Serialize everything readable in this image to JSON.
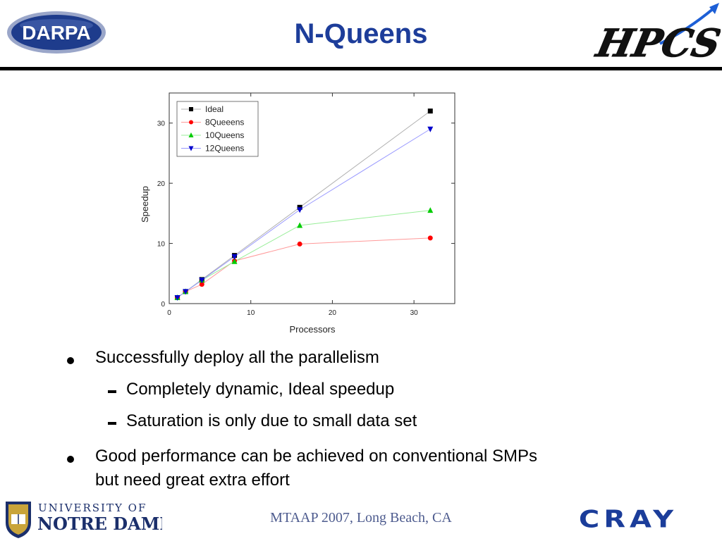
{
  "slide": {
    "title": "N-Queens",
    "footer": "MTAAP 2007, Long Beach, CA"
  },
  "logos": {
    "darpa": "DARPA",
    "hpcs": "HPCS",
    "notre_dame_line1": "UNIVERSITY OF",
    "notre_dame_line2": "NOTRE DAME",
    "cray": "CRAY"
  },
  "bullets": [
    {
      "text": "Successfully deploy all the parallelism",
      "sub": [
        "Completely dynamic, Ideal speedup",
        "Saturation is only due to small data set"
      ]
    },
    {
      "text_line1": "Good performance can be achieved on conventional SMPs",
      "text_line2": "but need great extra effort"
    }
  ],
  "chart_data": {
    "type": "line",
    "xlabel": "Processors",
    "ylabel": "Speedup",
    "xlim": [
      0,
      35
    ],
    "ylim": [
      0,
      35
    ],
    "xticks": [
      0,
      10,
      20,
      30
    ],
    "yticks": [
      0,
      10,
      20,
      30
    ],
    "grid": false,
    "legend": "top-left",
    "x": [
      1,
      2,
      4,
      8,
      16,
      32
    ],
    "series": [
      {
        "name": "Ideal",
        "values": [
          1,
          2,
          4,
          8,
          16,
          32
        ],
        "color": "#000000",
        "line": "#b0b0b0",
        "marker": "square"
      },
      {
        "name": "8Queeens",
        "values": [
          1,
          2,
          3.2,
          7.1,
          9.9,
          10.9
        ],
        "color": "#ff0000",
        "line": "#ff9999",
        "marker": "circle"
      },
      {
        "name": "10Queens",
        "values": [
          1,
          2,
          3.9,
          7.0,
          13.0,
          15.5
        ],
        "color": "#00cc00",
        "line": "#99ee99",
        "marker": "triangle-up"
      },
      {
        "name": "12Queens",
        "values": [
          1,
          2,
          3.9,
          7.8,
          15.6,
          29.0
        ],
        "color": "#0000cc",
        "line": "#9999ff",
        "marker": "triangle-down"
      }
    ]
  }
}
